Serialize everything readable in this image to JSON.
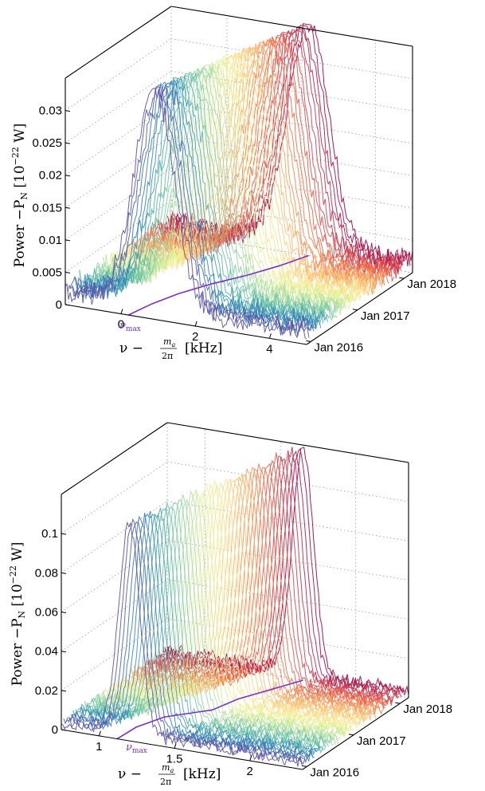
{
  "chart_data": [
    {
      "type": "line",
      "panel": "top",
      "ylabel": "Power $-P_N$ [10$^{-22}$ W]",
      "ylabel_parts": {
        "main": "Power −P",
        "sub": "N",
        "bracket": " [10",
        "sup": "−22",
        "unit": " W]"
      },
      "xlabel_parts": {
        "main": "ν − ",
        "frac_num": "m",
        "frac_num_sub": "a",
        "frac_den": "2π",
        "unit": "[kHz]"
      },
      "x_ticks": [
        "0",
        "2",
        "4"
      ],
      "y_ticks": [
        "0",
        "0.005",
        "0.01",
        "0.015",
        "0.02",
        "0.025",
        "0.03"
      ],
      "date_ticks": [
        "Jan 2016",
        "Jan 2017",
        "Jan 2018"
      ],
      "xlim": [
        -1.5,
        5.0
      ],
      "ylim": [
        0,
        0.035
      ],
      "date_range": [
        "2016-01",
        "2018-06"
      ],
      "peak_center_khz": [
        0.9,
        2.2
      ],
      "peak_width_khz": 0.55,
      "peak_height": [
        0.0335,
        0.0345
      ],
      "noise_level": 0.001,
      "numax_label": "ν",
      "numax_sub": "max",
      "numax_curve_khz": [
        0.2,
        0.35,
        0.6,
        1.0,
        1.5,
        1.9,
        2.2
      ],
      "colormap": "Spectral",
      "color_start": "#5e4fa2",
      "color_end": "#9e0142",
      "numax_color": "#7a2fd1"
    },
    {
      "type": "line",
      "panel": "bottom",
      "ylabel": "Power $-P_N$ [10$^{-22}$ W]",
      "ylabel_parts": {
        "main": "Power −P",
        "sub": "N",
        "bracket": " [10",
        "sup": "−22",
        "unit": " W]"
      },
      "xlabel_parts": {
        "main": "ν − ",
        "frac_num": "m",
        "frac_num_sub": "a",
        "frac_den": "2π",
        "unit": "[kHz]"
      },
      "x_ticks": [
        "1",
        "1.5",
        "2"
      ],
      "y_ticks": [
        "0",
        "0.02",
        "0.04",
        "0.06",
        "0.08",
        "0.1"
      ],
      "date_ticks": [
        "Jan 2016",
        "Jan 2017",
        "Jan 2018"
      ],
      "xlim": [
        0.75,
        2.35
      ],
      "ylim": [
        0,
        0.12
      ],
      "date_range": [
        "2016-01",
        "2018-06"
      ],
      "peak_center_khz": [
        1.2,
        1.65
      ],
      "peak_width_khz": 0.07,
      "peak_height": [
        0.107,
        0.115
      ],
      "noise_level": 0.002,
      "numax_label": "ν",
      "numax_sub": "max",
      "numax_curve_khz": [
        1.12,
        1.13,
        1.2,
        1.4,
        1.45,
        1.55,
        1.65
      ],
      "colormap": "Spectral",
      "color_start": "#5e4fa2",
      "color_end": "#9e0142",
      "numax_color": "#7a2fd1"
    }
  ]
}
